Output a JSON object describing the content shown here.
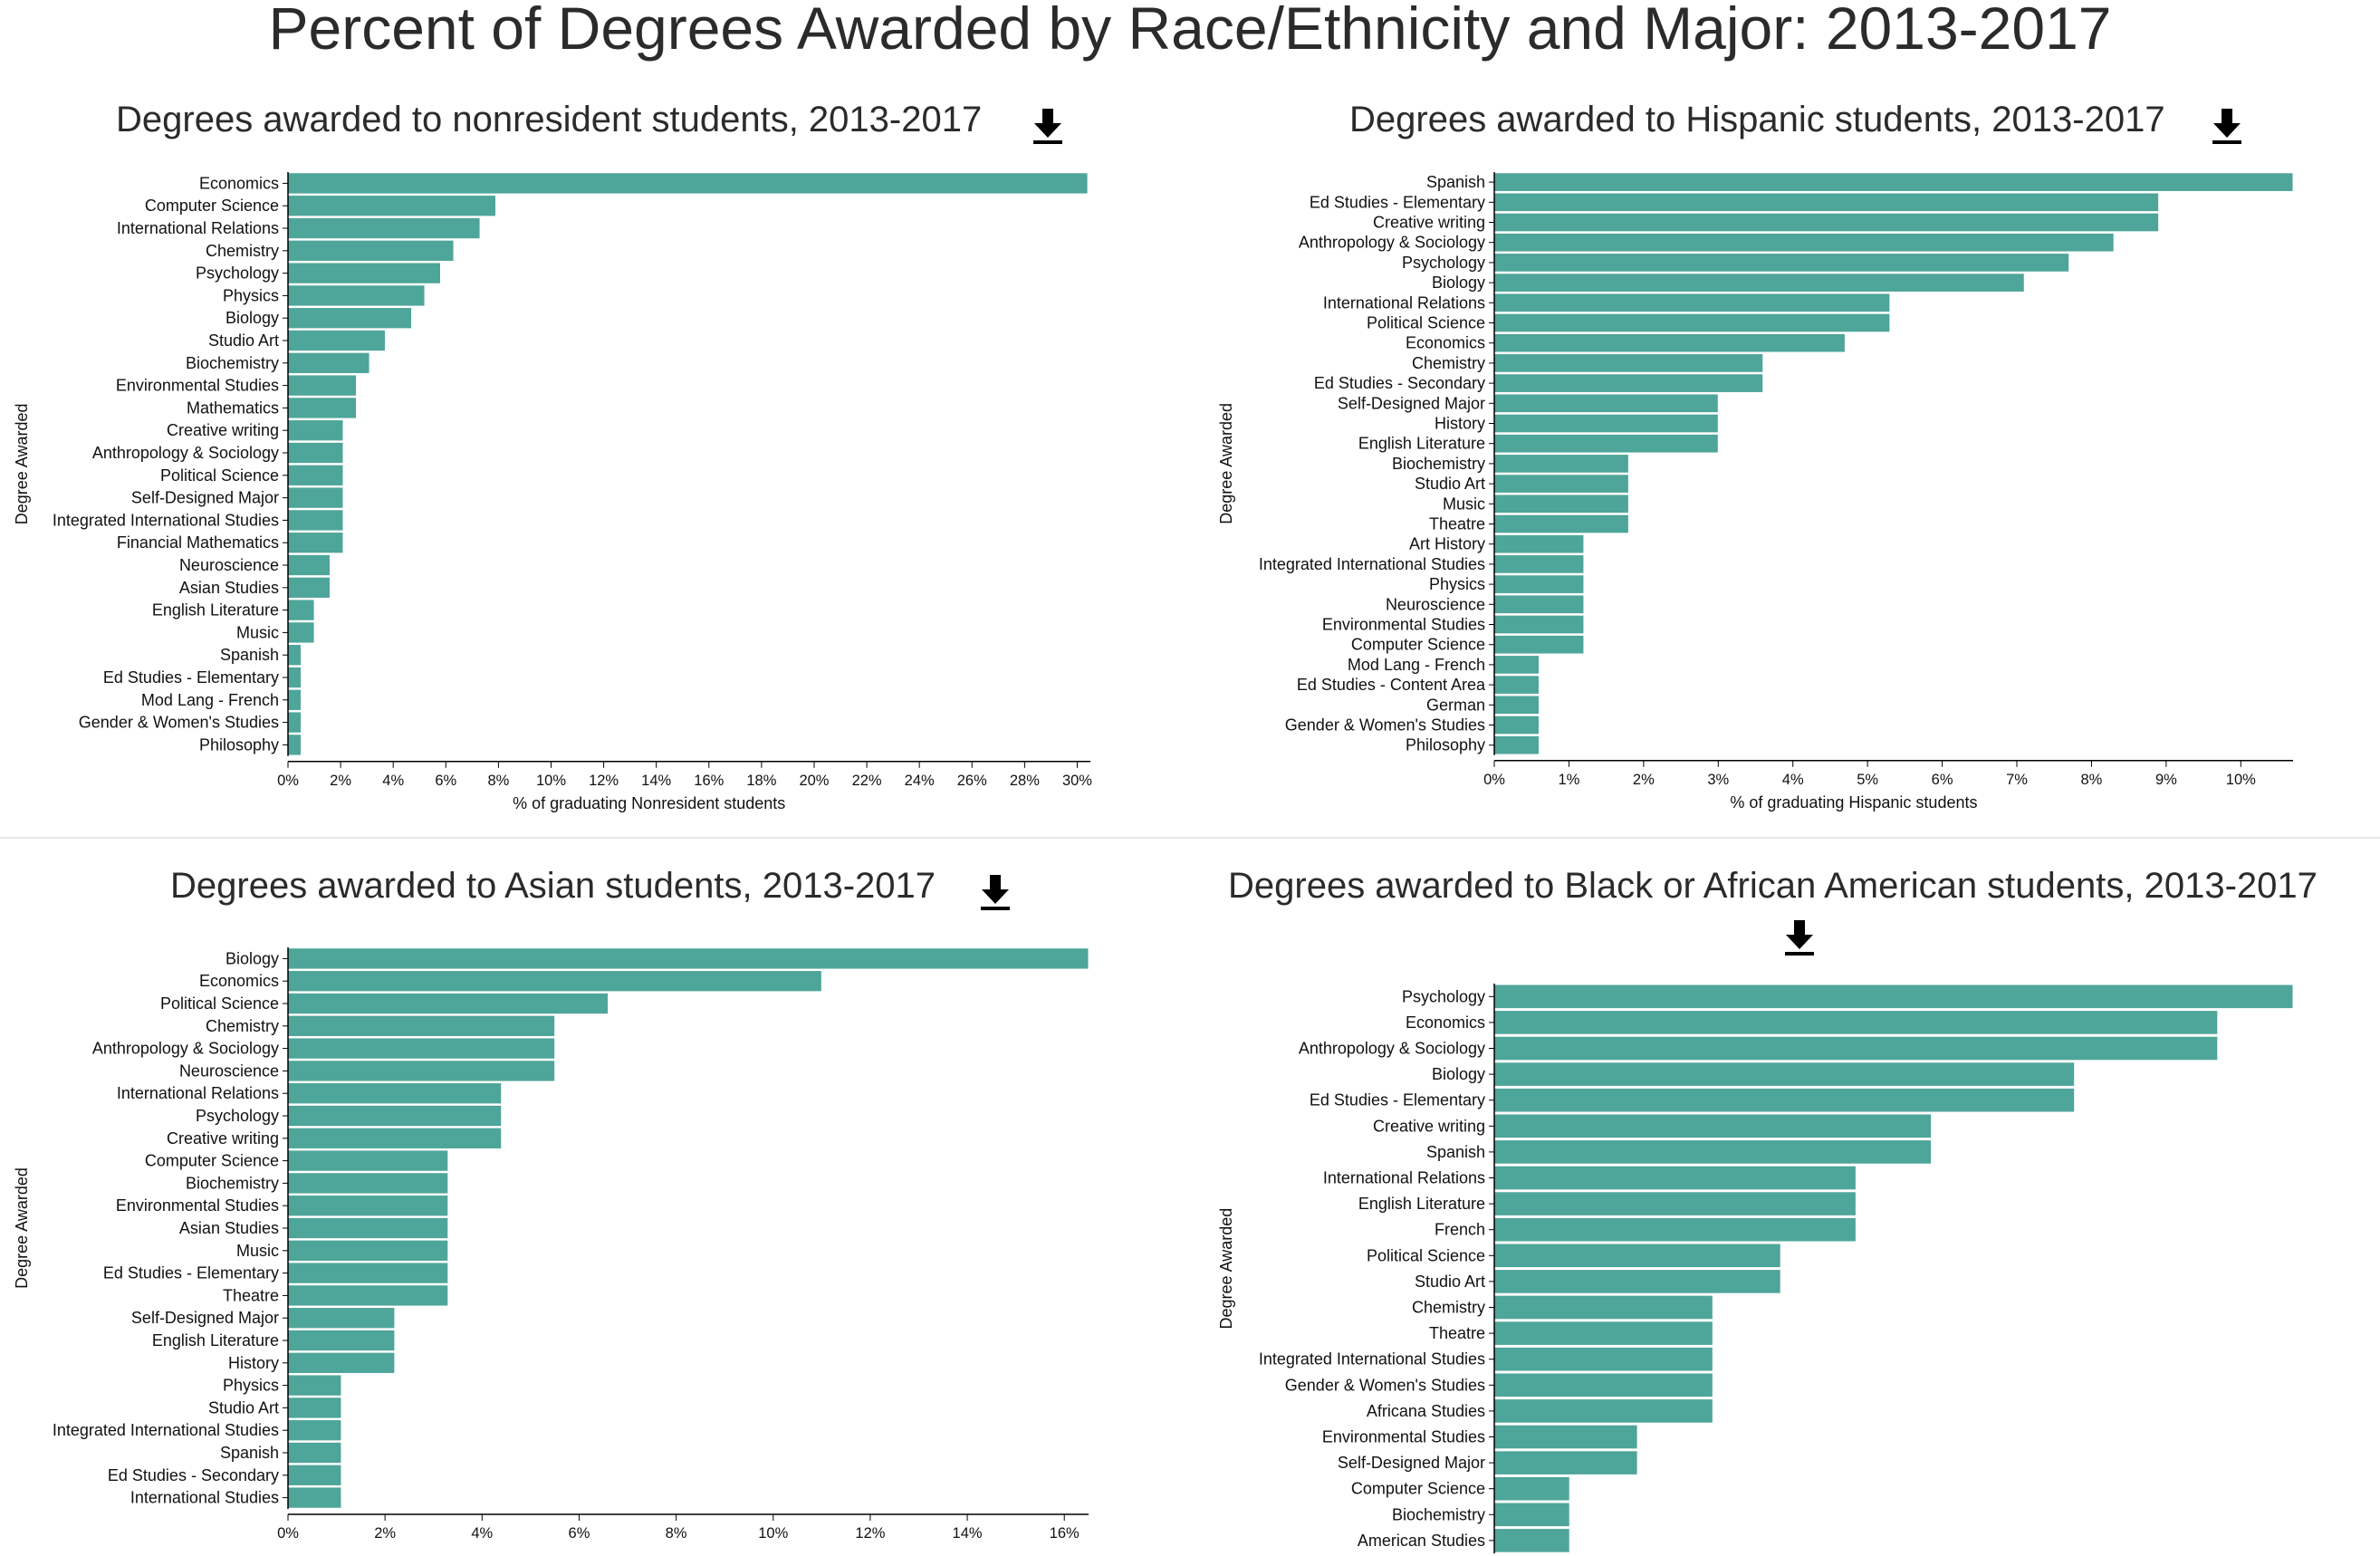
{
  "page": {
    "title": "Percent of Degrees Awarded by Race/Ethnicity and Major: 2013-2017"
  },
  "colors": {
    "bar": "#4ea599",
    "bar_stroke": "#ffffff",
    "axis": "#000000",
    "divider": "#e6e6e6"
  },
  "icons": {
    "download": "download-icon"
  },
  "chart_data": [
    {
      "type": "bar",
      "orientation": "horizontal",
      "title": "Degrees awarded to nonresident students, 2013-2017",
      "xlabel": "% of graduating Nonresident students",
      "ylabel": "Degree Awarded",
      "xlim": [
        0,
        30.5
      ],
      "xticks": [
        0,
        2,
        4,
        6,
        8,
        10,
        12,
        14,
        16,
        18,
        20,
        22,
        24,
        26,
        28,
        30
      ],
      "tick_format": "int",
      "categories": [
        "Economics",
        "Computer Science",
        "International Relations",
        "Chemistry",
        "Psychology",
        "Physics",
        "Biology",
        "Studio Art",
        "Biochemistry",
        "Environmental Studies",
        "Mathematics",
        "Creative writing",
        "Anthropology & Sociology",
        "Political Science",
        "Self-Designed Major",
        "Integrated International Studies",
        "Financial Mathematics",
        "Neuroscience",
        "Asian Studies",
        "English Literature",
        "Music",
        "Spanish",
        "Ed Studies - Elementary",
        "Mod Lang - French",
        "Gender & Women's Studies",
        "Philosophy"
      ],
      "values": [
        30.4,
        7.9,
        7.3,
        6.3,
        5.8,
        5.2,
        4.7,
        3.7,
        3.1,
        2.6,
        2.6,
        2.1,
        2.1,
        2.1,
        2.1,
        2.1,
        2.1,
        1.6,
        1.6,
        1.0,
        1.0,
        0.5,
        0.5,
        0.5,
        0.5,
        0.5
      ]
    },
    {
      "type": "bar",
      "orientation": "horizontal",
      "title": "Degrees awarded to Hispanic students, 2013-2017",
      "xlabel": "% of graduating Hispanic students",
      "ylabel": "Degree Awarded",
      "xlim": [
        0,
        10.7
      ],
      "xticks": [
        0,
        1,
        2,
        3,
        4,
        5,
        6,
        7,
        8,
        9,
        10
      ],
      "tick_format": "int",
      "categories": [
        "Spanish",
        "Ed Studies - Elementary",
        "Creative writing",
        "Anthropology & Sociology",
        "Psychology",
        "Biology",
        "International Relations",
        "Political Science",
        "Economics",
        "Chemistry",
        "Ed Studies - Secondary",
        "Self-Designed Major",
        "History",
        "English Literature",
        "Biochemistry",
        "Studio Art",
        "Music",
        "Theatre",
        "Art History",
        "Integrated International Studies",
        "Physics",
        "Neuroscience",
        "Environmental Studies",
        "Computer Science",
        "Mod Lang - French",
        "Ed Studies - Content Area",
        "German",
        "Gender & Women's Studies",
        "Philosophy"
      ],
      "values": [
        10.7,
        8.9,
        8.9,
        8.3,
        7.7,
        7.1,
        5.3,
        5.3,
        4.7,
        3.6,
        3.6,
        3.0,
        3.0,
        3.0,
        1.8,
        1.8,
        1.8,
        1.8,
        1.2,
        1.2,
        1.2,
        1.2,
        1.2,
        1.2,
        0.6,
        0.6,
        0.6,
        0.6,
        0.6
      ]
    },
    {
      "type": "bar",
      "orientation": "horizontal",
      "title": "Degrees awarded to Asian students, 2013-2017",
      "xlabel": "",
      "ylabel": "Degree Awarded",
      "xlim": [
        0,
        16.5
      ],
      "xticks": [
        0,
        2,
        4,
        6,
        8,
        10,
        12,
        14,
        16
      ],
      "tick_format": "int",
      "categories": [
        "Biology",
        "Economics",
        "Political Science",
        "Chemistry",
        "Anthropology & Sociology",
        "Neuroscience",
        "International Relations",
        "Psychology",
        "Creative writing",
        "Computer Science",
        "Biochemistry",
        "Environmental Studies",
        "Asian Studies",
        "Music",
        "Ed Studies - Elementary",
        "Theatre",
        "Self-Designed Major",
        "English Literature",
        "History",
        "Physics",
        "Studio Art",
        "Integrated International Studies",
        "Spanish",
        "Ed Studies - Secondary",
        "International Studies"
      ],
      "values": [
        16.5,
        11.0,
        6.6,
        5.5,
        5.5,
        5.5,
        4.4,
        4.4,
        4.4,
        3.3,
        3.3,
        3.3,
        3.3,
        3.3,
        3.3,
        3.3,
        2.2,
        2.2,
        2.2,
        1.1,
        1.1,
        1.1,
        1.1,
        1.1,
        1.1
      ]
    },
    {
      "type": "bar",
      "orientation": "horizontal",
      "title": "Degrees awarded to Black or African American students, 2013-2017",
      "xlabel": "",
      "ylabel": "Degree Awarded",
      "categories": [
        "Psychology",
        "Economics",
        "Anthropology & Sociology",
        "Biology",
        "Ed Studies - Elementary",
        "Creative writing",
        "Spanish",
        "International Relations",
        "English Literature",
        "French",
        "Political Science",
        "Studio Art",
        "Chemistry",
        "Theatre",
        "Integrated International Studies",
        "Gender & Women's Studies",
        "Africana Studies",
        "Environmental Studies",
        "Self-Designed Major",
        "Computer Science",
        "Biochemistry",
        "American Studies"
      ],
      "values": [
        10.6,
        9.6,
        9.6,
        7.7,
        7.7,
        5.8,
        5.8,
        4.8,
        4.8,
        4.8,
        3.8,
        3.8,
        2.9,
        2.9,
        2.9,
        2.9,
        2.9,
        1.9,
        1.9,
        1.0,
        1.0,
        1.0
      ],
      "xlim": [
        0,
        10.6
      ]
    }
  ]
}
